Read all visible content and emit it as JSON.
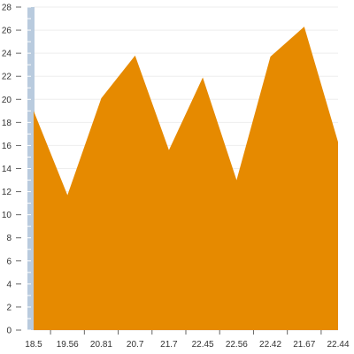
{
  "colors": {
    "area_fill": "#e68a00",
    "axis_band": "#b9cbde",
    "gridline": "#eeeeee",
    "tick_text": "#333333",
    "background": "#ffffff"
  },
  "chart_data": {
    "type": "area",
    "categories": [
      "18.5",
      "19.56",
      "20.81",
      "20.7",
      "21.7",
      "22.45",
      "22.56",
      "22.42",
      "21.67",
      "22.44"
    ],
    "series": [
      {
        "values": [
          19.0,
          11.7,
          20.1,
          23.8,
          15.6,
          21.9,
          13.0,
          23.7,
          26.3,
          16.3
        ]
      }
    ],
    "y_ticks": [
      "0",
      "2",
      "4",
      "6",
      "8",
      "10",
      "12",
      "14",
      "16",
      "18",
      "20",
      "22",
      "24",
      "26",
      "28"
    ],
    "ylim": [
      0,
      28
    ],
    "grid": true,
    "legend": "none",
    "title": "",
    "xlabel": "",
    "ylabel": ""
  }
}
